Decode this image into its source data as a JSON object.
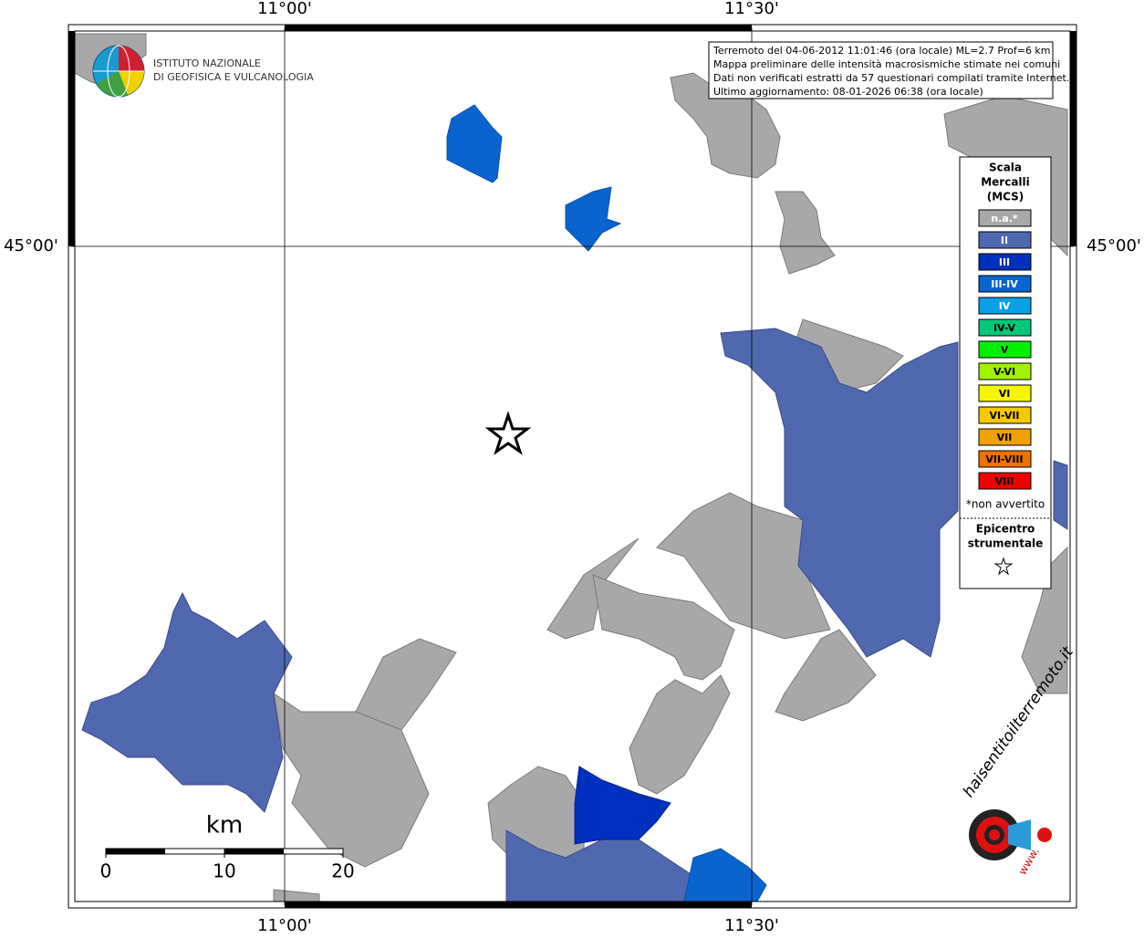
{
  "map": {
    "logo": {
      "line1": "ISTITUTO NAZIONALE",
      "line2": "DI GEOFISICA E VULCANOLOGIA"
    },
    "info": [
      "Terremoto del 04-06-2012 11:01:46 (ora locale) ML=2.7 Prof=6 km",
      "Mappa preliminare delle intensità macrosismiche stimate nei comuni",
      "Dati non verificati estratti da 57 questionari compilati tramite Internet.",
      "Ultimo aggiornamento: 08-01-2026 06:38 (ora locale)"
    ],
    "lon_labels": [
      "11°00'",
      "11°30'"
    ],
    "lat_label": "45°00'",
    "legend": {
      "title": [
        "Scala",
        "Mercalli",
        "(MCS)"
      ],
      "entries": [
        {
          "label": "n.a.*",
          "color": "#a8a8a8",
          "text_color": "#ffffff"
        },
        {
          "label": "II",
          "color": "#5068b0",
          "text_color": "#ffffff"
        },
        {
          "label": "III",
          "color": "#0030c0",
          "text_color": "#ffffff"
        },
        {
          "label": "III-IV",
          "color": "#0a64d0",
          "text_color": "#ffffff"
        },
        {
          "label": "IV",
          "color": "#0aa0e8",
          "text_color": "#ffffff"
        },
        {
          "label": "IV-V",
          "color": "#00c878",
          "text_color": "#000000"
        },
        {
          "label": "V",
          "color": "#00f000",
          "text_color": "#000000"
        },
        {
          "label": "V-VI",
          "color": "#a0f000",
          "text_color": "#000000"
        },
        {
          "label": "VI",
          "color": "#f5f500",
          "text_color": "#000000"
        },
        {
          "label": "VI-VII",
          "color": "#f5c800",
          "text_color": "#000000"
        },
        {
          "label": "VII",
          "color": "#f0a000",
          "text_color": "#000000"
        },
        {
          "label": "VII-VIII",
          "color": "#f07000",
          "text_color": "#000000"
        },
        {
          "label": "VIII",
          "color": "#f00000",
          "text_color": "#000000"
        }
      ],
      "note": "*non avvertito",
      "epicenter": [
        "Epicentro",
        "strumentale"
      ]
    },
    "scale_bar": {
      "unit": "km",
      "ticks": [
        0,
        10,
        20
      ]
    },
    "site_logo": {
      "name": "haisentitoilterremoto.it",
      "prefix": "www."
    }
  }
}
